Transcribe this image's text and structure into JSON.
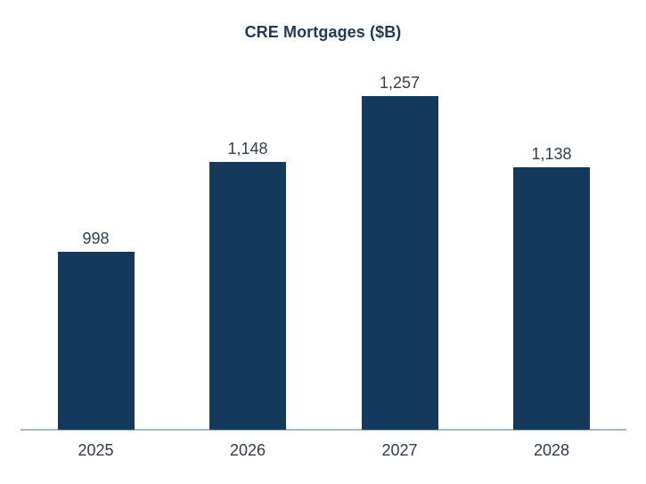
{
  "chart_data": {
    "type": "bar",
    "title": "CRE Mortgages ($B)",
    "categories": [
      "2025",
      "2026",
      "2027",
      "2028"
    ],
    "values": [
      998,
      1148,
      1257,
      1138
    ],
    "value_labels": [
      "998",
      "1,148",
      "1,257",
      "1,138"
    ],
    "xlabel": "",
    "ylabel": "",
    "ylim": [
      700,
      1300
    ],
    "grid": false,
    "legend": "none",
    "bar_color": "#133a5c"
  },
  "colors": {
    "background": "#ffffff",
    "bar": "#133a5c",
    "title_text": "#1f3a55",
    "value_label_text": "#333e4d",
    "tick_label_text": "#2e3b4e",
    "axis_line": "#aeb6bd"
  }
}
